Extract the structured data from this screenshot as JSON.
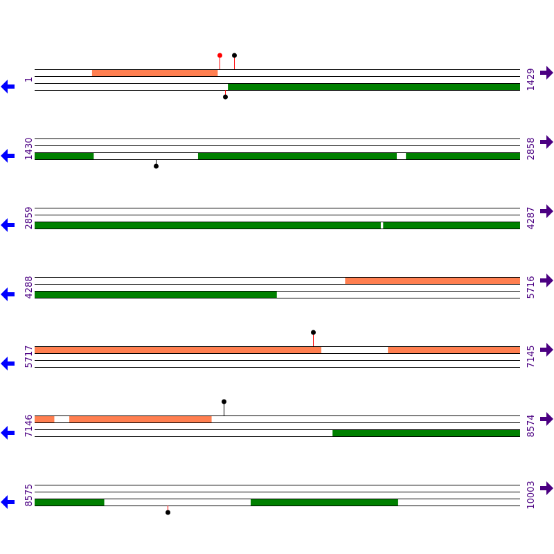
{
  "colors": {
    "forward_feature": "#ff7f50",
    "reverse_feature": "#008000",
    "line": "#000000",
    "left_arrow": "#0000ff",
    "right_arrow": "#4b0082",
    "label": "#4b0082",
    "marker_red": "#ff0000",
    "marker_black": "#000000"
  },
  "icons": {
    "left": "arrow-left-icon",
    "right": "arrow-right-icon"
  },
  "rows": [
    {
      "start": "1",
      "end": "1429",
      "s": 1,
      "e": 1429,
      "forward": [
        [
          170,
          539
        ]
      ],
      "reverse": [
        [
          570,
          1429
        ]
      ],
      "markers": [
        {
          "pos": 545,
          "strand": "forward",
          "head": "#ff0000",
          "stem": "#ff0000"
        },
        {
          "pos": 588,
          "strand": "forward",
          "head": "#000000",
          "stem": "#ff0000"
        },
        {
          "pos": 562,
          "strand": "reverse",
          "head": "#000000",
          "stem": "#ff0000"
        }
      ]
    },
    {
      "start": "1430",
      "end": "2858",
      "s": 1430,
      "e": 2858,
      "forward": [],
      "reverse": [
        [
          1430,
          1603
        ],
        [
          1911,
          2495
        ],
        [
          2523,
          2858
        ]
      ],
      "markers": [
        {
          "pos": 1787,
          "strand": "reverse",
          "head": "#000000",
          "stem": "#000000"
        }
      ]
    },
    {
      "start": "2859",
      "end": "4287",
      "s": 2859,
      "e": 4287,
      "forward": [],
      "reverse": [
        [
          2859,
          3877
        ],
        [
          3885,
          4287
        ]
      ],
      "markers": []
    },
    {
      "start": "4288",
      "end": "5716",
      "s": 4288,
      "e": 5716,
      "forward": [
        [
          5202,
          5716
        ]
      ],
      "reverse": [
        [
          4288,
          5000
        ]
      ],
      "markers": []
    },
    {
      "start": "5717",
      "end": "7145",
      "s": 5717,
      "e": 7145,
      "forward": [
        [
          5717,
          6560
        ],
        [
          6757,
          7145
        ]
      ],
      "reverse": [],
      "markers": [
        {
          "pos": 6537,
          "strand": "forward",
          "head": "#000000",
          "stem": "#ff0000"
        }
      ]
    },
    {
      "start": "7146",
      "end": "8574",
      "s": 7146,
      "e": 8574,
      "forward": [
        [
          7146,
          7203
        ],
        [
          7248,
          7666
        ]
      ],
      "reverse": [
        [
          8023,
          8574
        ]
      ],
      "markers": [
        {
          "pos": 7703,
          "strand": "forward",
          "head": "#000000",
          "stem": "#000000"
        }
      ]
    },
    {
      "start": "8575",
      "end": "10003",
      "s": 8575,
      "e": 10003,
      "forward": [],
      "reverse": [
        [
          8575,
          8779
        ],
        [
          9211,
          9644
        ]
      ],
      "markers": [
        {
          "pos": 8967,
          "strand": "reverse",
          "head": "#000000",
          "stem": "#ff0000"
        }
      ]
    }
  ]
}
